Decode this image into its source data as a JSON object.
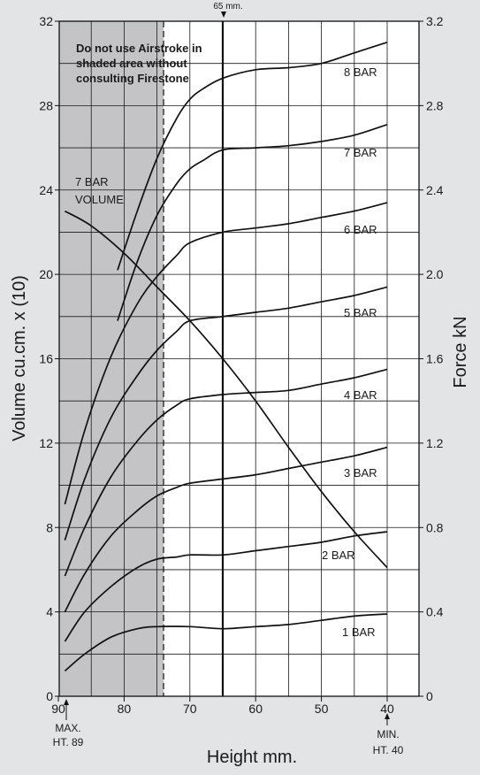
{
  "chart_data": {
    "type": "line",
    "xlabel": "Height mm.",
    "ylabel_left": "Volume cu.cm. x (10)",
    "ylabel_right": "Force kN",
    "x_ticks": [
      90,
      80,
      70,
      60,
      50,
      40
    ],
    "y_left_ticks": [
      0,
      4,
      8,
      12,
      16,
      20,
      24,
      28,
      32
    ],
    "y_right_ticks": [
      "0",
      "0.4",
      "0.8",
      "1.2",
      "1.6",
      "2.0",
      "2.4",
      "2.8",
      "3.2"
    ],
    "xlim": [
      90,
      38
    ],
    "ylim_left": [
      0,
      32
    ],
    "ylim_right": [
      0,
      3.2
    ],
    "grid": true,
    "shaded_region": {
      "x_from": 90,
      "x_to": 74,
      "note": [
        "Do not use Airstroke in",
        "shaded area without",
        "consulting Firestone"
      ]
    },
    "reference_line": {
      "x": 65,
      "label": "65 mm."
    },
    "max_marker": {
      "x": 89,
      "label": [
        "MAX.",
        "HT. 89"
      ]
    },
    "min_marker": {
      "x": 40,
      "label": [
        "MIN.",
        "HT. 40"
      ]
    },
    "series": [
      {
        "name": "1 BAR",
        "x": [
          89,
          86,
          82,
          78,
          75,
          70,
          65,
          60,
          55,
          50,
          45,
          40
        ],
        "y": [
          1.2,
          2.0,
          2.8,
          3.2,
          3.3,
          3.3,
          3.2,
          3.3,
          3.4,
          3.6,
          3.8,
          3.9
        ]
      },
      {
        "name": "2 BAR",
        "x": [
          89,
          86,
          82,
          78,
          75,
          72,
          70,
          65,
          60,
          55,
          50,
          45,
          40
        ],
        "y": [
          2.6,
          4.0,
          5.2,
          6.1,
          6.5,
          6.6,
          6.7,
          6.7,
          6.9,
          7.1,
          7.3,
          7.6,
          7.8
        ]
      },
      {
        "name": "3 BAR",
        "x": [
          89,
          86,
          82,
          78,
          75,
          72,
          70,
          65,
          60,
          55,
          50,
          45,
          40
        ],
        "y": [
          4.0,
          5.8,
          7.6,
          8.8,
          9.5,
          9.9,
          10.1,
          10.3,
          10.5,
          10.8,
          11.1,
          11.4,
          11.8
        ]
      },
      {
        "name": "4 BAR",
        "x": [
          89,
          86,
          82,
          78,
          75,
          72,
          70,
          65,
          60,
          55,
          50,
          45,
          40
        ],
        "y": [
          5.7,
          8.0,
          10.4,
          12.1,
          13.1,
          13.8,
          14.1,
          14.3,
          14.4,
          14.5,
          14.8,
          15.1,
          15.5
        ]
      },
      {
        "name": "5 BAR",
        "x": [
          89,
          86,
          82,
          78,
          75,
          72,
          70,
          65,
          60,
          55,
          50,
          45,
          40
        ],
        "y": [
          7.4,
          10.3,
          13.2,
          15.2,
          16.4,
          17.3,
          17.8,
          18.0,
          18.2,
          18.4,
          18.7,
          19.0,
          19.4
        ]
      },
      {
        "name": "6 BAR",
        "x": [
          89,
          86,
          82,
          78,
          75,
          72,
          70,
          65,
          60,
          55,
          50,
          45,
          40
        ],
        "y": [
          9.1,
          12.6,
          16.1,
          18.6,
          19.9,
          20.9,
          21.5,
          22.0,
          22.2,
          22.4,
          22.7,
          23.0,
          23.4
        ]
      },
      {
        "name": "7 BAR",
        "x": [
          81,
          78,
          75,
          72,
          70,
          68,
          65,
          60,
          55,
          50,
          45,
          40
        ],
        "y": [
          17.8,
          20.6,
          22.8,
          24.3,
          25.0,
          25.4,
          25.9,
          26.0,
          26.1,
          26.3,
          26.6,
          27.1
        ]
      },
      {
        "name": "8 BAR",
        "x": [
          81,
          78,
          75,
          72,
          70,
          68,
          65,
          60,
          55,
          50,
          45,
          40
        ],
        "y": [
          20.2,
          23.0,
          25.5,
          27.4,
          28.3,
          28.8,
          29.3,
          29.7,
          29.8,
          30.0,
          30.5,
          31.0
        ]
      },
      {
        "name": "7 BAR VOLUME",
        "x": [
          89,
          85,
          80,
          75,
          70,
          65,
          60,
          55,
          50,
          45,
          40
        ],
        "y": [
          23.0,
          22.3,
          21.0,
          19.4,
          17.8,
          16.0,
          14.0,
          11.8,
          9.7,
          7.8,
          6.1
        ]
      }
    ],
    "curve_labels": [
      "1 BAR",
      "2 BAR",
      "3 BAR",
      "4 BAR",
      "5 BAR",
      "6 BAR",
      "7 BAR",
      "8 BAR"
    ],
    "volume_label": [
      "7 BAR",
      "VOLUME"
    ]
  }
}
